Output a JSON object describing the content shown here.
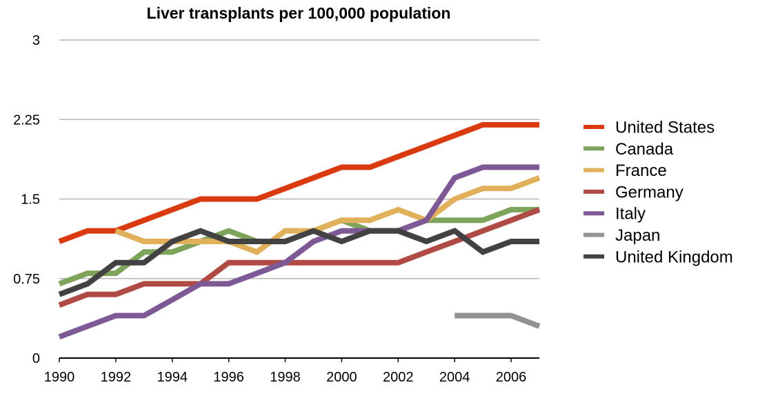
{
  "chart_data": {
    "type": "line",
    "title": "Liver transplants per 100,000 population",
    "xlabel": "",
    "ylabel": "",
    "x": [
      1990,
      1991,
      1992,
      1993,
      1994,
      1995,
      1996,
      1997,
      1998,
      1999,
      2000,
      2001,
      2002,
      2003,
      2004,
      2005,
      2006,
      2007
    ],
    "xlim": [
      1990,
      2007
    ],
    "ylim": [
      0,
      3
    ],
    "x_ticks": [
      "1990",
      "1992",
      "1994",
      "1996",
      "1998",
      "2000",
      "2002",
      "2004",
      "2006"
    ],
    "y_ticks": [
      "0",
      "0.75",
      "1.5",
      "2.25",
      "3"
    ],
    "grid": "horizontal",
    "legend_position": "right",
    "series": [
      {
        "name": "United States",
        "color": "#d93a10",
        "values": [
          1.1,
          1.2,
          1.2,
          1.3,
          1.4,
          1.5,
          1.5,
          1.5,
          1.6,
          1.7,
          1.8,
          1.8,
          1.9,
          2.0,
          2.1,
          2.2,
          2.2,
          2.2
        ]
      },
      {
        "name": "Canada",
        "color": "#7ea35a",
        "values": [
          0.7,
          0.8,
          0.8,
          1.0,
          1.0,
          1.1,
          1.2,
          1.1,
          1.1,
          1.2,
          1.3,
          1.2,
          1.2,
          1.3,
          1.3,
          1.3,
          1.4,
          1.4
        ]
      },
      {
        "name": "France",
        "color": "#e0b05a",
        "values": [
          null,
          null,
          1.2,
          1.1,
          1.1,
          1.1,
          1.1,
          1.0,
          1.2,
          1.2,
          1.3,
          1.3,
          1.4,
          1.3,
          1.5,
          1.6,
          1.6,
          1.7
        ]
      },
      {
        "name": "Germany",
        "color": "#b04a44",
        "values": [
          0.5,
          0.6,
          0.6,
          0.7,
          0.7,
          0.7,
          0.9,
          0.9,
          0.9,
          0.9,
          0.9,
          0.9,
          0.9,
          1.0,
          1.1,
          1.2,
          1.3,
          1.4
        ]
      },
      {
        "name": "Italy",
        "color": "#7d5a96",
        "values": [
          0.2,
          0.3,
          0.4,
          0.4,
          0.55,
          0.7,
          0.7,
          0.8,
          0.9,
          1.1,
          1.2,
          1.2,
          1.2,
          1.3,
          1.7,
          1.8,
          1.8,
          1.8
        ]
      },
      {
        "name": "Japan",
        "color": "#929292",
        "values": [
          null,
          null,
          null,
          null,
          null,
          null,
          null,
          null,
          null,
          null,
          null,
          null,
          null,
          null,
          0.4,
          0.4,
          0.4,
          0.3
        ]
      },
      {
        "name": "United Kingdom",
        "color": "#424242",
        "values": [
          0.6,
          0.7,
          0.9,
          0.9,
          1.1,
          1.2,
          1.1,
          1.1,
          1.1,
          1.2,
          1.1,
          1.2,
          1.2,
          1.1,
          1.2,
          1.0,
          1.1,
          1.1
        ]
      }
    ]
  }
}
